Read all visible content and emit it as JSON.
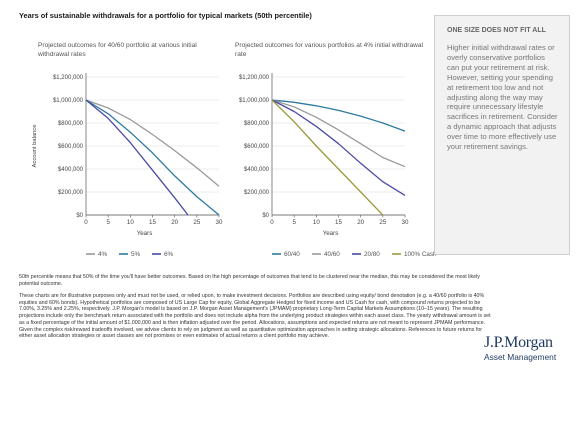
{
  "page_title": "Years of sustainable withdrawals for a portfolio for typical markets (50th percentile)",
  "sidebar": {
    "heading": "ONE SIZE DOES NOT FIT ALL",
    "body": "Higher initial withdrawal rates or overly conservative portfolios can put your retirement at risk. However, setting your spending at retirement too low and not adjusting along the way may require unnecessary lifestyle sacrifices in retirement. Consider a dynamic approach that adjusts over time to more effectively use your retirement savings."
  },
  "footnotes": {
    "median": "50th percentile means that 50% of the time you'll have better outcomes. Based on the high percentage of outcomes that tend to be clustered near the median, this may be considered the most likely potential outcome.",
    "disclaimer": "These charts are for illustrative purposes only and must not be used, or relied upon, to make investment decisions. Portfolios are described using equity/ bond denotation (e.g. a 40/60 portfolio is 40% equities and 60% bonds). Hypothetical portfolios are composed of US Large Cap for equity, Global Aggregate Hedged for fixed income and US Cash for cash, with compound returns projected to be 7.00%, 3.25% and 2.25%, respectively. J.P. Morgan's model is based on J.P. Morgan Asset Management's (JPMAM) proprietary Long-Term Capital Markets Assumptions (10–15 years). The resulting projections include only the benchmark return associated with the portfolio and does not include alpha from the underlying product strategies within each asset class. The yearly withdrawal amount is set as a fixed percentage of the initial amount of $1,000,000 and is then inflation adjusted over the period. Allocations, assumptions and expected returns are not meant to represent JPMAM performance. Given the complex risk/reward tradeoffs involved, we advise clients to rely on judgment as well as quantitative optimization approaches in setting strategic allocations. References to future returns for either asset allocation strategies or asset classes are not promises or even estimates of actual returns a client portfolio may achieve."
  },
  "logo": {
    "brand": "J.P.Morgan",
    "sub": "Asset Management"
  },
  "chart_data": [
    {
      "type": "line",
      "title": "Projected outcomes for 40/60 portfolio at various initial withdrawal rates",
      "xlabel": "Years",
      "ylabel": "Account balance",
      "x_ticks": [
        0,
        5,
        10,
        15,
        20,
        25,
        30
      ],
      "y_ticks": [
        "$0",
        "$200,000",
        "$400,000",
        "$600,000",
        "$800,000",
        "$1,000,000",
        "$1,200,000"
      ],
      "xlim": [
        0,
        30
      ],
      "ylim": [
        0,
        1200000
      ],
      "grid": true,
      "legend_position": "bottom",
      "series": [
        {
          "name": "4%",
          "color": "#9a9a9a",
          "points": [
            [
              0,
              1000000
            ],
            [
              5,
              930000
            ],
            [
              10,
              830000
            ],
            [
              15,
              700000
            ],
            [
              20,
              560000
            ],
            [
              25,
              410000
            ],
            [
              30,
              250000
            ]
          ]
        },
        {
          "name": "5%",
          "color": "#2e7a9e",
          "points": [
            [
              0,
              1000000
            ],
            [
              5,
              880000
            ],
            [
              10,
              720000
            ],
            [
              15,
              540000
            ],
            [
              20,
              340000
            ],
            [
              25,
              160000
            ],
            [
              30,
              0
            ]
          ]
        },
        {
          "name": "6%",
          "color": "#4a4aa6",
          "points": [
            [
              0,
              1000000
            ],
            [
              5,
              840000
            ],
            [
              10,
              630000
            ],
            [
              15,
              390000
            ],
            [
              20,
              150000
            ],
            [
              23,
              0
            ]
          ]
        }
      ]
    },
    {
      "type": "line",
      "title": "Projected outcomes for various portfolios at 4% initial withdrawal rate",
      "xlabel": "Years",
      "ylabel": "",
      "x_ticks": [
        0,
        5,
        10,
        15,
        20,
        25,
        30
      ],
      "y_ticks": [
        "$0",
        "$200,000",
        "$400,000",
        "$600,000",
        "$800,000",
        "$1,000,000",
        "$1,200,000"
      ],
      "xlim": [
        0,
        30
      ],
      "ylim": [
        0,
        1200000
      ],
      "grid": true,
      "legend_position": "bottom",
      "series": [
        {
          "name": "60/40",
          "color": "#2e7a9e",
          "points": [
            [
              0,
              1000000
            ],
            [
              5,
              980000
            ],
            [
              10,
              950000
            ],
            [
              15,
              910000
            ],
            [
              20,
              860000
            ],
            [
              25,
              800000
            ],
            [
              30,
              730000
            ]
          ]
        },
        {
          "name": "40/60",
          "color": "#9a9a9a",
          "points": [
            [
              0,
              1000000
            ],
            [
              5,
              940000
            ],
            [
              10,
              850000
            ],
            [
              15,
              740000
            ],
            [
              20,
              620000
            ],
            [
              25,
              500000
            ],
            [
              30,
              420000
            ]
          ]
        },
        {
          "name": "20/80",
          "color": "#4a4aa6",
          "points": [
            [
              0,
              1000000
            ],
            [
              5,
              900000
            ],
            [
              10,
              770000
            ],
            [
              15,
              620000
            ],
            [
              20,
              450000
            ],
            [
              25,
              290000
            ],
            [
              30,
              170000
            ]
          ]
        },
        {
          "name": "100% Cash",
          "color": "#9a9a3c",
          "points": [
            [
              0,
              1000000
            ],
            [
              5,
              810000
            ],
            [
              10,
              600000
            ],
            [
              15,
              400000
            ],
            [
              20,
              200000
            ],
            [
              25,
              0
            ]
          ]
        }
      ]
    }
  ]
}
